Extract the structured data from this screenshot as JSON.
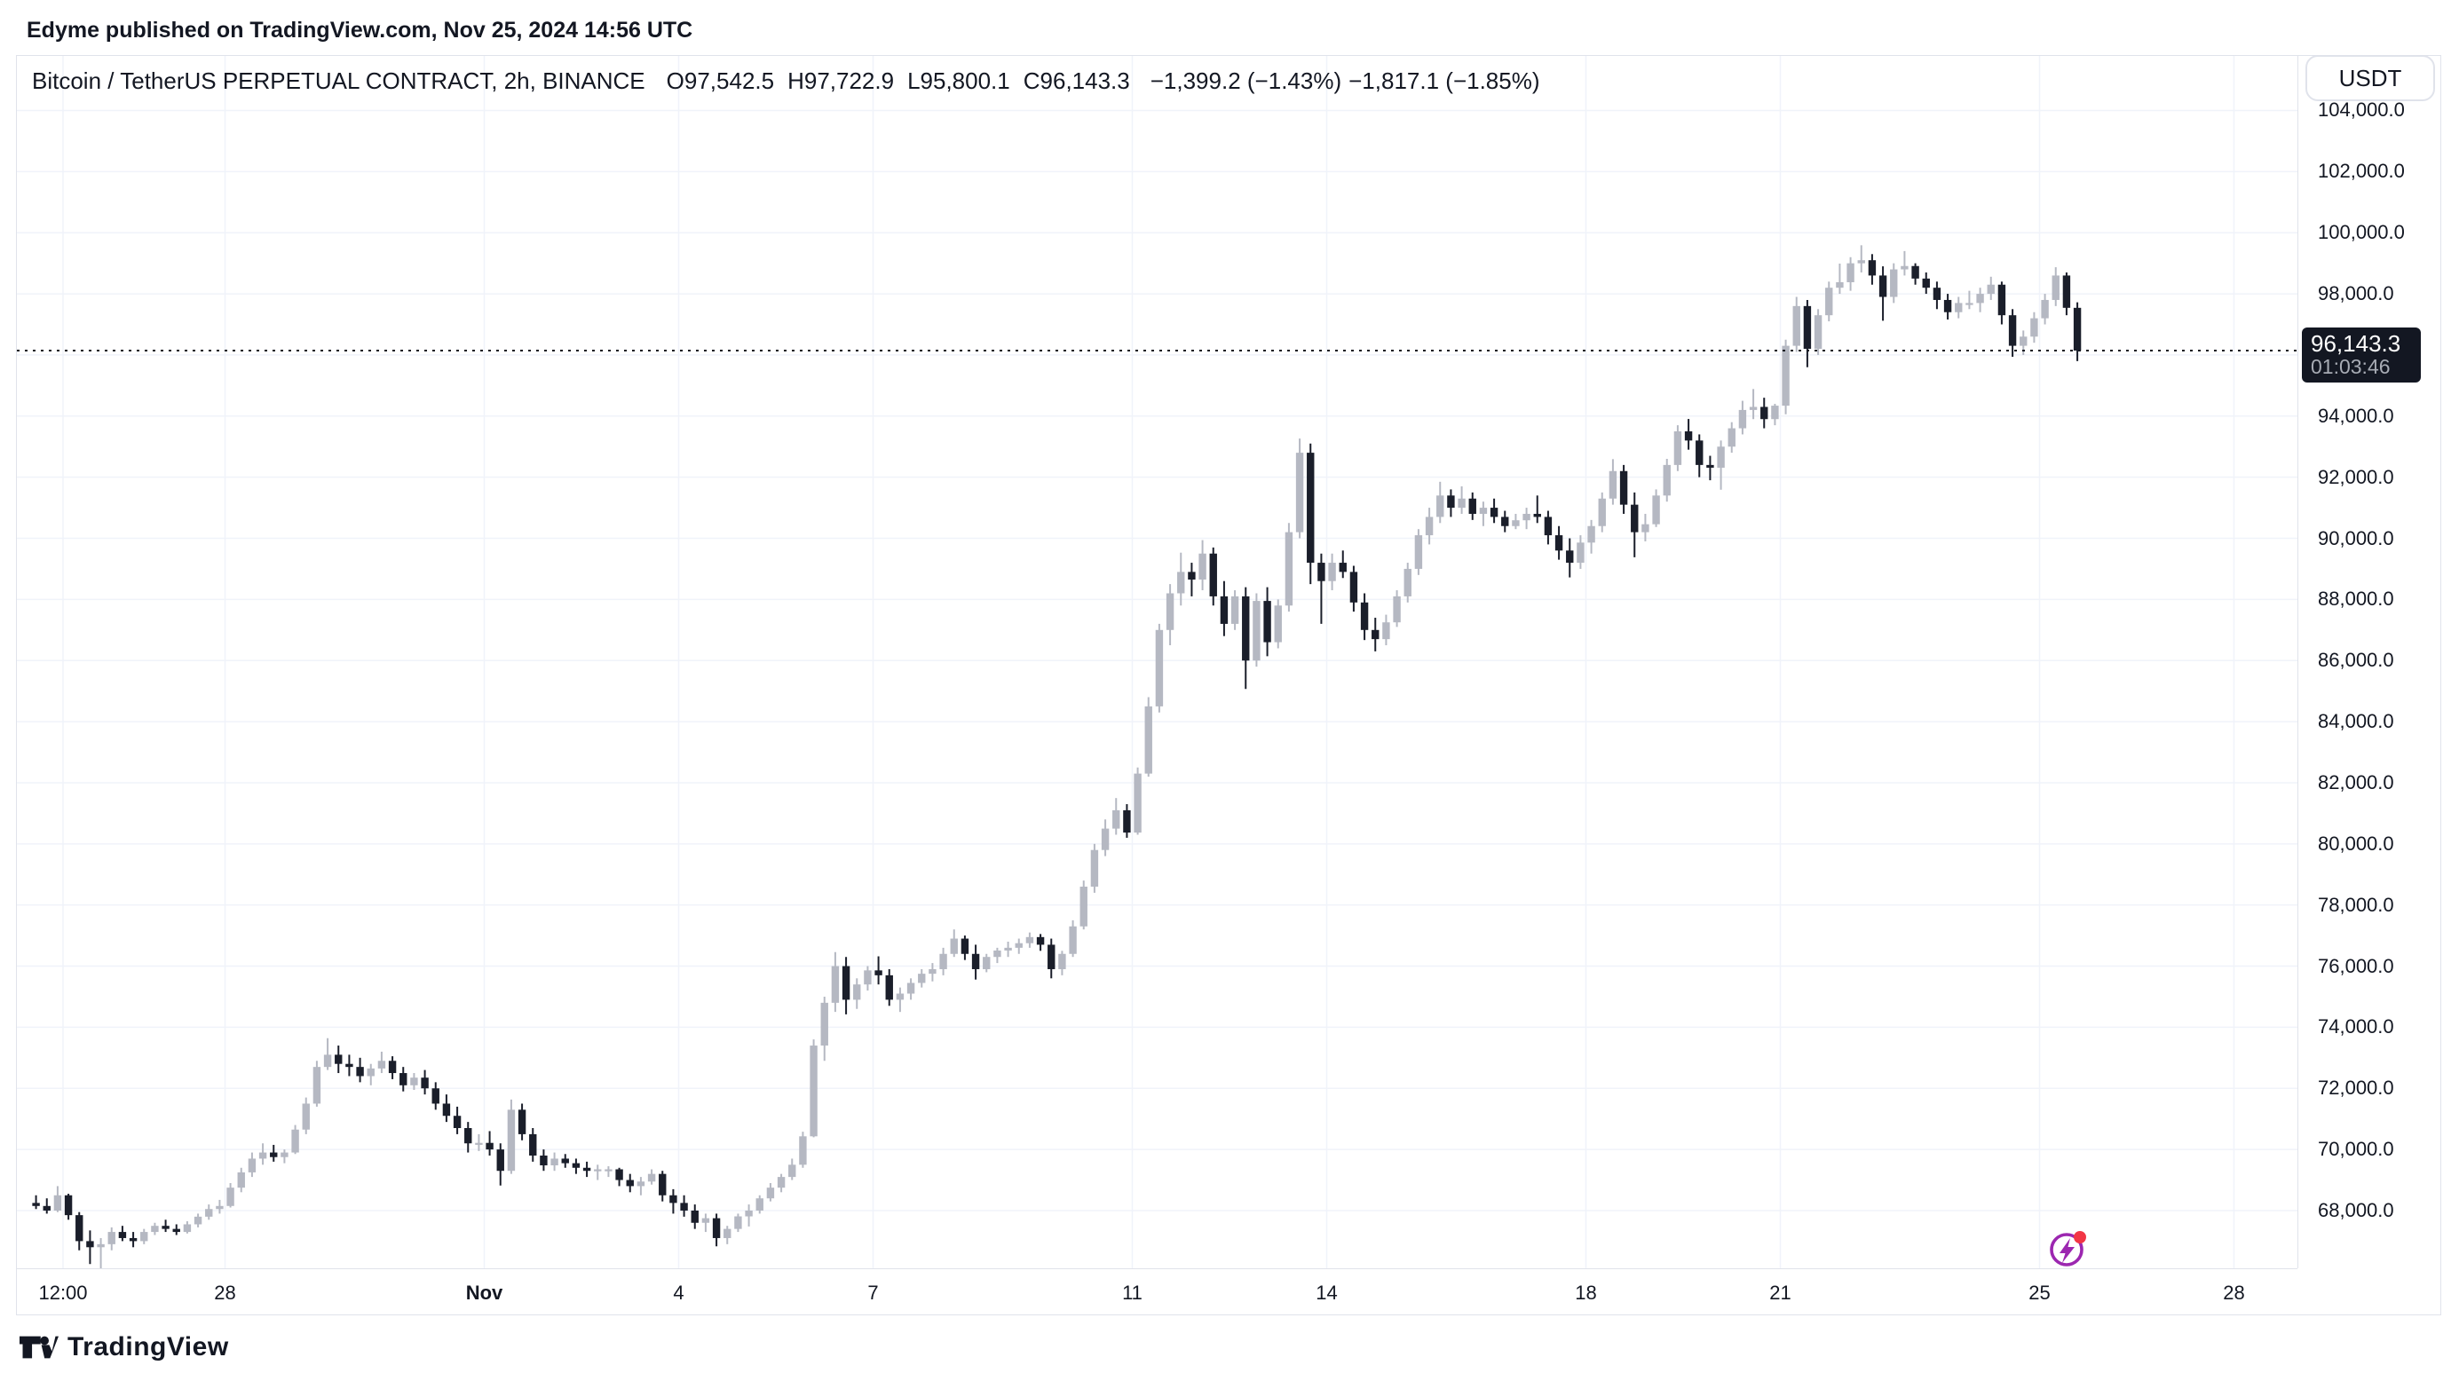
{
  "page": {
    "attribution": "Edyme published on TradingView.com, Nov 25, 2024 14:56 UTC",
    "watermark_brand": "TradingView"
  },
  "toolbar": {
    "currency_button": "USDT"
  },
  "legend": {
    "symbol_title": "Bitcoin / TetherUS PERPETUAL CONTRACT, 2h, BINANCE",
    "open": "O97,542.5",
    "high": "H97,722.9",
    "low": "L95,800.1",
    "close": "C96,143.3",
    "change_bar": "−1,399.2 (−1.43%)",
    "change_day": "−1,817.1 (−1.85%)"
  },
  "price_scale": {
    "labels": [
      {
        "text": "104,000.0",
        "price": 104000
      },
      {
        "text": "102,000.0",
        "price": 102000
      },
      {
        "text": "100,000.0",
        "price": 100000
      },
      {
        "text": "98,000.0",
        "price": 98000
      },
      {
        "text": "94,000.0",
        "price": 94000
      },
      {
        "text": "92,000.0",
        "price": 92000
      },
      {
        "text": "90,000.0",
        "price": 90000
      },
      {
        "text": "88,000.0",
        "price": 88000
      },
      {
        "text": "86,000.0",
        "price": 86000
      },
      {
        "text": "84,000.0",
        "price": 84000
      },
      {
        "text": "82,000.0",
        "price": 82000
      },
      {
        "text": "80,000.0",
        "price": 80000
      },
      {
        "text": "78,000.0",
        "price": 78000
      },
      {
        "text": "76,000.0",
        "price": 76000
      },
      {
        "text": "74,000.0",
        "price": 74000
      },
      {
        "text": "72,000.0",
        "price": 72000
      },
      {
        "text": "70,000.0",
        "price": 70000
      },
      {
        "text": "68,000.0",
        "price": 68000
      }
    ],
    "current": {
      "text": "96,143.3",
      "countdown": "01:03:46",
      "price": 96143.3
    }
  },
  "time_scale": {
    "ticks": [
      {
        "label": "12:00",
        "day": 0.5,
        "bold": false
      },
      {
        "label": "28",
        "day": 3,
        "bold": false
      },
      {
        "label": "Nov",
        "day": 7,
        "bold": true
      },
      {
        "label": "4",
        "day": 10,
        "bold": false
      },
      {
        "label": "7",
        "day": 13,
        "bold": false
      },
      {
        "label": "11",
        "day": 17,
        "bold": false
      },
      {
        "label": "14",
        "day": 20,
        "bold": false
      },
      {
        "label": "18",
        "day": 24,
        "bold": false
      },
      {
        "label": "21",
        "day": 27,
        "bold": false
      },
      {
        "label": "25",
        "day": 31,
        "bold": false
      },
      {
        "label": "28",
        "day": 34,
        "bold": false
      }
    ]
  },
  "chart_data": {
    "type": "candlestick",
    "title": "Bitcoin / TetherUS PERPETUAL CONTRACT",
    "exchange": "BINANCE",
    "interval": "2h",
    "quote_currency": "USDT",
    "start_time": "2024-10-25 00:00 UTC",
    "end_time": "2024-11-25 14:56 UTC",
    "candle_duration_hours": 4,
    "note": "OHLC values estimated from pixels; series approximated at 4-hour resolution of the displayed 2h chart.",
    "current_price": 96143.3,
    "current_bar": {
      "open": 97542.5,
      "high": 97722.9,
      "low": 95800.1,
      "close": 96143.3
    },
    "ylim": [
      66000,
      106300
    ],
    "y_tick_step": 2000,
    "grid": true,
    "up_color": "#B5B8C2",
    "down_color": "#1A1E2A",
    "y_gridlines": [
      104000,
      102000,
      100000,
      98000,
      96000,
      94000,
      92000,
      90000,
      88000,
      86000,
      84000,
      82000,
      80000,
      78000,
      76000,
      74000,
      72000,
      70000,
      68000
    ],
    "ohlc": [
      [
        68250,
        68500,
        68050,
        68150
      ],
      [
        68150,
        68400,
        67900,
        68000
      ],
      [
        68000,
        68800,
        67950,
        68500
      ],
      [
        68500,
        68550,
        67700,
        67850
      ],
      [
        67850,
        67950,
        66700,
        67000
      ],
      [
        67000,
        67350,
        66250,
        66800
      ],
      [
        66800,
        67100,
        66100,
        66900
      ],
      [
        66900,
        67450,
        66700,
        67300
      ],
      [
        67300,
        67500,
        67000,
        67100
      ],
      [
        67100,
        67300,
        66800,
        67000
      ],
      [
        67000,
        67400,
        66900,
        67300
      ],
      [
        67300,
        67600,
        67200,
        67500
      ],
      [
        67500,
        67700,
        67300,
        67400
      ],
      [
        67400,
        67550,
        67200,
        67300
      ],
      [
        67300,
        67650,
        67250,
        67550
      ],
      [
        67550,
        67900,
        67450,
        67800
      ],
      [
        67800,
        68200,
        67700,
        68050
      ],
      [
        68050,
        68350,
        67900,
        68150
      ],
      [
        68150,
        68900,
        68100,
        68750
      ],
      [
        68750,
        69400,
        68600,
        69250
      ],
      [
        69250,
        69900,
        69100,
        69700
      ],
      [
        69700,
        70200,
        69500,
        69900
      ],
      [
        69900,
        70150,
        69600,
        69750
      ],
      [
        69750,
        70000,
        69550,
        69900
      ],
      [
        69900,
        70800,
        69850,
        70650
      ],
      [
        70650,
        71700,
        70500,
        71500
      ],
      [
        71500,
        72900,
        71400,
        72700
      ],
      [
        72700,
        73642,
        72600,
        73100
      ],
      [
        73100,
        73400,
        72500,
        72800
      ],
      [
        72800,
        73100,
        72400,
        72700
      ],
      [
        72700,
        73000,
        72200,
        72400
      ],
      [
        72400,
        72800,
        72100,
        72650
      ],
      [
        72650,
        73200,
        72500,
        72900
      ],
      [
        72900,
        73050,
        72300,
        72500
      ],
      [
        72500,
        72700,
        71900,
        72100
      ],
      [
        72100,
        72500,
        71950,
        72350
      ],
      [
        72350,
        72600,
        71800,
        72000
      ],
      [
        72000,
        72200,
        71300,
        71500
      ],
      [
        71500,
        71800,
        70900,
        71100
      ],
      [
        71100,
        71400,
        70500,
        70700
      ],
      [
        70700,
        70900,
        69900,
        70200
      ],
      [
        70200,
        70500,
        69950,
        70215
      ],
      [
        70215,
        70600,
        69800,
        70000
      ],
      [
        70000,
        70200,
        68820,
        69300
      ],
      [
        69300,
        71632,
        69200,
        71300
      ],
      [
        71300,
        71500,
        70300,
        70500
      ],
      [
        70500,
        70700,
        69600,
        69800
      ],
      [
        69800,
        70000,
        69300,
        69480
      ],
      [
        69480,
        69900,
        69300,
        69700
      ],
      [
        69700,
        69850,
        69400,
        69550
      ],
      [
        69550,
        69700,
        69200,
        69400
      ],
      [
        69400,
        69600,
        69100,
        69300
      ],
      [
        69300,
        69500,
        69000,
        69350
      ],
      [
        69350,
        69450,
        69100,
        69350
      ],
      [
        69350,
        69400,
        68800,
        69000
      ],
      [
        69000,
        69200,
        68600,
        68800
      ],
      [
        68800,
        69100,
        68500,
        68950
      ],
      [
        68950,
        69350,
        68850,
        69200
      ],
      [
        69200,
        69300,
        68300,
        68500
      ],
      [
        68500,
        68700,
        67900,
        68250
      ],
      [
        68250,
        68500,
        67800,
        68000
      ],
      [
        68000,
        68200,
        67400,
        67600
      ],
      [
        67600,
        67900,
        67300,
        67750
      ],
      [
        67750,
        67900,
        66830,
        67100
      ],
      [
        67100,
        67500,
        66900,
        67400
      ],
      [
        67400,
        67900,
        67300,
        67810
      ],
      [
        67810,
        68200,
        67480,
        68000
      ],
      [
        68000,
        68500,
        67900,
        68400
      ],
      [
        68400,
        68900,
        68300,
        68750
      ],
      [
        68750,
        69200,
        68600,
        69100
      ],
      [
        69100,
        69700,
        69000,
        69500
      ],
      [
        69500,
        70580,
        69400,
        70430
      ],
      [
        70430,
        73600,
        70400,
        73400
      ],
      [
        73400,
        75000,
        72900,
        74800
      ],
      [
        74800,
        76460,
        74500,
        76000
      ],
      [
        76000,
        76300,
        74420,
        74900
      ],
      [
        74900,
        75600,
        74600,
        75400
      ],
      [
        75400,
        76000,
        75200,
        75860
      ],
      [
        75860,
        76320,
        75400,
        75700
      ],
      [
        75700,
        75900,
        74700,
        74900
      ],
      [
        74900,
        75300,
        74500,
        75100
      ],
      [
        75100,
        75600,
        74900,
        75450
      ],
      [
        75450,
        75900,
        75300,
        75750
      ],
      [
        75750,
        76100,
        75500,
        75900
      ],
      [
        75900,
        76600,
        75700,
        76400
      ],
      [
        76400,
        77200,
        76300,
        76900
      ],
      [
        76900,
        77000,
        76200,
        76400
      ],
      [
        76400,
        76700,
        75560,
        75900
      ],
      [
        75900,
        76400,
        75800,
        76300
      ],
      [
        76300,
        76600,
        76100,
        76510
      ],
      [
        76510,
        76800,
        76300,
        76600
      ],
      [
        76600,
        76900,
        76400,
        76750
      ],
      [
        76750,
        77100,
        76600,
        76950
      ],
      [
        76950,
        77050,
        76500,
        76700
      ],
      [
        76700,
        76900,
        75600,
        75900
      ],
      [
        75900,
        76500,
        75700,
        76400
      ],
      [
        76400,
        77500,
        76300,
        77300
      ],
      [
        77300,
        78800,
        77200,
        78600
      ],
      [
        78600,
        80000,
        78400,
        79800
      ],
      [
        79800,
        80800,
        79600,
        80500
      ],
      [
        80500,
        81500,
        80300,
        81100
      ],
      [
        81100,
        81300,
        80200,
        80370
      ],
      [
        80370,
        82500,
        80300,
        82300
      ],
      [
        82300,
        84800,
        82200,
        84500
      ],
      [
        84500,
        87200,
        84300,
        87000
      ],
      [
        87000,
        88500,
        86500,
        88200
      ],
      [
        88200,
        89530,
        87800,
        88900
      ],
      [
        88900,
        89200,
        88100,
        88650
      ],
      [
        88650,
        89940,
        88300,
        89500
      ],
      [
        89500,
        89700,
        87800,
        88100
      ],
      [
        88100,
        88600,
        86800,
        87200
      ],
      [
        87200,
        88300,
        87000,
        88100
      ],
      [
        88100,
        88400,
        85070,
        86000
      ],
      [
        86000,
        88200,
        85800,
        87950
      ],
      [
        87950,
        88400,
        86140,
        86600
      ],
      [
        86600,
        88000,
        86400,
        87800
      ],
      [
        87800,
        90500,
        87600,
        90200
      ],
      [
        90200,
        93265,
        90000,
        92800
      ],
      [
        92800,
        93100,
        88500,
        89200
      ],
      [
        89200,
        89500,
        87200,
        88600
      ],
      [
        88600,
        89500,
        88300,
        89200
      ],
      [
        89200,
        89600,
        88700,
        88900
      ],
      [
        88900,
        89100,
        87600,
        87900
      ],
      [
        87900,
        88200,
        86670,
        87000
      ],
      [
        87000,
        87400,
        86300,
        86700
      ],
      [
        86700,
        87500,
        86500,
        87250
      ],
      [
        87250,
        88300,
        87100,
        88100
      ],
      [
        88100,
        89200,
        87900,
        89000
      ],
      [
        89000,
        90300,
        88800,
        90100
      ],
      [
        90100,
        91000,
        89800,
        90700
      ],
      [
        90700,
        91850,
        90500,
        91400
      ],
      [
        91400,
        91600,
        90700,
        91000
      ],
      [
        91000,
        91700,
        90800,
        91300
      ],
      [
        91300,
        91500,
        90600,
        90800
      ],
      [
        90800,
        91200,
        90400,
        91000
      ],
      [
        91000,
        91300,
        90500,
        90700
      ],
      [
        90700,
        90900,
        90200,
        90400
      ],
      [
        90400,
        90800,
        90300,
        90590
      ],
      [
        90590,
        91000,
        90300,
        90800
      ],
      [
        90800,
        91400,
        90500,
        90700
      ],
      [
        90700,
        90900,
        89800,
        90100
      ],
      [
        90100,
        90400,
        89300,
        89600
      ],
      [
        89600,
        90000,
        88720,
        89200
      ],
      [
        89200,
        90100,
        89000,
        89860
      ],
      [
        89860,
        90600,
        89500,
        90400
      ],
      [
        90400,
        91500,
        90200,
        91300
      ],
      [
        91300,
        92590,
        91100,
        92200
      ],
      [
        92200,
        92400,
        90800,
        91100
      ],
      [
        91100,
        91500,
        89380,
        90200
      ],
      [
        90200,
        90800,
        89900,
        90460
      ],
      [
        90460,
        91600,
        90370,
        91400
      ],
      [
        91400,
        92600,
        91200,
        92400
      ],
      [
        92400,
        93700,
        92200,
        93500
      ],
      [
        93500,
        93905,
        92900,
        93200
      ],
      [
        93200,
        93400,
        92000,
        92400
      ],
      [
        92400,
        92700,
        91900,
        92310
      ],
      [
        92310,
        93200,
        91590,
        93000
      ],
      [
        93000,
        93800,
        92800,
        93600
      ],
      [
        93600,
        94500,
        93400,
        94200
      ],
      [
        94200,
        94885,
        93900,
        94300
      ],
      [
        94300,
        94600,
        93600,
        93900
      ],
      [
        93900,
        94400,
        93700,
        94340
      ],
      [
        94340,
        96500,
        94060,
        96300
      ],
      [
        96300,
        97900,
        96100,
        97600
      ],
      [
        97600,
        97800,
        95600,
        96200
      ],
      [
        96200,
        97500,
        96000,
        97300
      ],
      [
        97300,
        98400,
        97100,
        98200
      ],
      [
        98200,
        98990,
        98000,
        98380
      ],
      [
        98380,
        99200,
        98100,
        99000
      ],
      [
        99000,
        99590,
        98700,
        99100
      ],
      [
        99100,
        99300,
        98300,
        98600
      ],
      [
        98600,
        98900,
        97120,
        97900
      ],
      [
        97900,
        99000,
        97700,
        98800
      ],
      [
        98800,
        99400,
        98600,
        98910
      ],
      [
        98910,
        99000,
        98300,
        98500
      ],
      [
        98500,
        98700,
        98000,
        98200
      ],
      [
        98200,
        98400,
        97500,
        97800
      ],
      [
        97800,
        98000,
        97160,
        97400
      ],
      [
        97400,
        97900,
        97200,
        97700
      ],
      [
        97700,
        98100,
        97500,
        97700
      ],
      [
        97700,
        98200,
        97400,
        98000
      ],
      [
        98000,
        98560,
        97800,
        98300
      ],
      [
        98300,
        98400,
        97000,
        97300
      ],
      [
        97300,
        97500,
        95940,
        96300
      ],
      [
        96300,
        96800,
        96000,
        96600
      ],
      [
        96600,
        97400,
        96400,
        97200
      ],
      [
        97200,
        98000,
        97000,
        97800
      ],
      [
        97800,
        98871,
        97600,
        98600
      ],
      [
        98600,
        98700,
        97300,
        97542.5
      ],
      [
        97542.5,
        97722.9,
        95800.1,
        96143.3
      ]
    ]
  },
  "colors": {
    "background": "#ffffff",
    "text": "#131722",
    "grid": "#F0F3FA",
    "border": "#E0E3EB",
    "up_candle": "#B5B8C2",
    "down_candle": "#1A1E2A",
    "price_tag_bg": "#131722",
    "price_tag_text": "#ffffff",
    "countdown_text": "#A7ABB4",
    "flash_icon": "#9C27B0",
    "flash_dot": "#F23645"
  },
  "icons": {
    "flash": "flash-event-icon",
    "logo": "tradingview-logo-icon"
  }
}
